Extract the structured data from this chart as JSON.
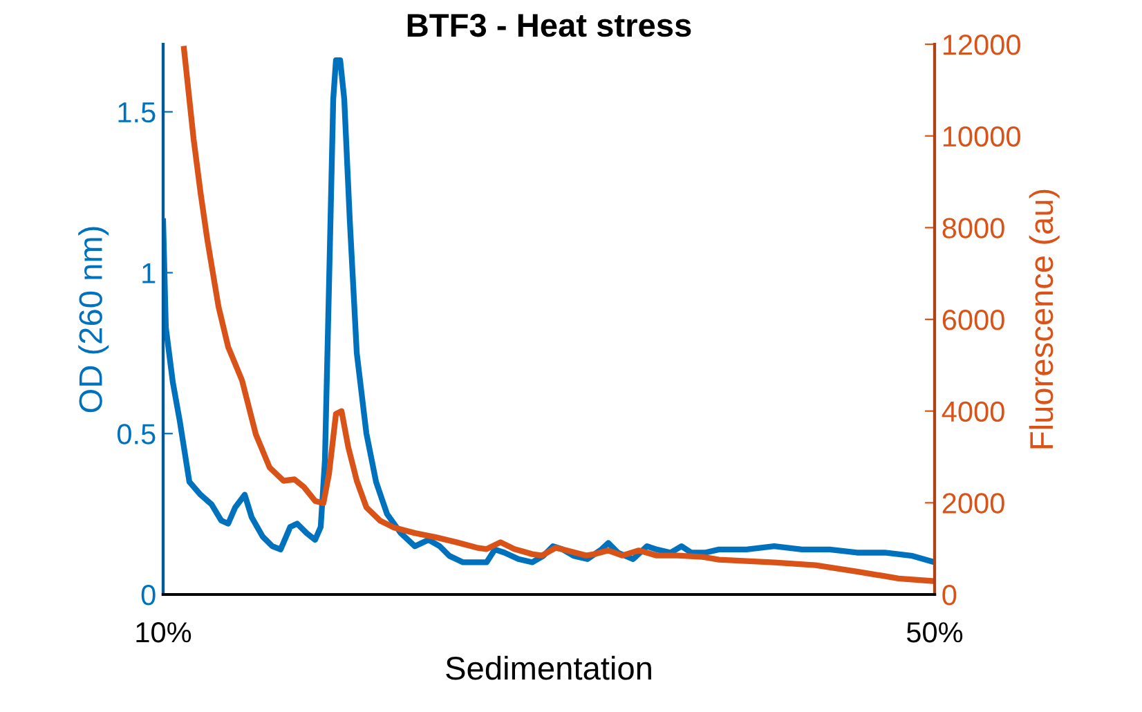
{
  "chart_data": {
    "type": "line",
    "title": "BTF3 - Heat stress",
    "xlabel": "Sedimentation",
    "ylabel": "OD (260 nm)",
    "y2label": "Fluorescence (au)",
    "xlim": [
      10,
      50
    ],
    "xticks": [
      {
        "value": 10,
        "label": "10%"
      },
      {
        "value": 50,
        "label": "50%"
      }
    ],
    "ylim": [
      0,
      1.71
    ],
    "yticks": [
      0,
      0.5,
      1,
      1.5
    ],
    "y2lim": [
      0,
      12000
    ],
    "y2ticks": [
      0,
      2000,
      4000,
      6000,
      8000,
      10000,
      12000
    ],
    "grid": false,
    "legend": false,
    "marker": "none",
    "line_style": "solid",
    "series": [
      {
        "color": "#0072bd",
        "x": [
          10.0,
          10.14,
          10.5,
          10.86,
          11.36,
          11.94,
          12.51,
          13.01,
          13.37,
          13.73,
          14.23,
          14.59,
          15.16,
          15.66,
          16.09,
          16.59,
          16.95,
          17.45,
          17.88,
          18.17,
          18.39,
          18.6,
          18.82,
          18.96,
          19.18,
          19.39,
          19.68,
          20.04,
          20.54,
          21.04,
          21.61,
          22.33,
          23.05,
          23.76,
          24.34,
          24.84,
          25.55,
          26.27,
          26.77,
          27.2,
          27.7,
          28.42,
          29.14,
          29.71,
          30.21,
          30.72,
          31.29,
          32.0,
          32.72,
          33.08,
          33.58,
          34.37,
          35.09,
          35.59,
          36.31,
          36.88,
          37.38,
          38.1,
          38.82,
          40.25,
          41.68,
          43.12,
          44.55,
          45.98,
          47.42,
          48.85,
          50.0
        ],
        "values": [
          1.16,
          0.83,
          0.66,
          0.54,
          0.35,
          0.31,
          0.28,
          0.23,
          0.22,
          0.27,
          0.31,
          0.24,
          0.18,
          0.15,
          0.14,
          0.21,
          0.22,
          0.19,
          0.17,
          0.21,
          0.42,
          0.96,
          1.54,
          1.66,
          1.66,
          1.54,
          1.16,
          0.75,
          0.5,
          0.35,
          0.25,
          0.19,
          0.15,
          0.17,
          0.15,
          0.12,
          0.1,
          0.1,
          0.1,
          0.14,
          0.13,
          0.11,
          0.1,
          0.12,
          0.15,
          0.14,
          0.12,
          0.11,
          0.14,
          0.16,
          0.13,
          0.11,
          0.15,
          0.14,
          0.13,
          0.15,
          0.13,
          0.13,
          0.14,
          0.14,
          0.15,
          0.14,
          0.14,
          0.13,
          0.13,
          0.12,
          0.1
        ]
      },
      {
        "color": "#d95319",
        "axis": "y2",
        "x": [
          11.08,
          11.58,
          11.94,
          12.29,
          12.87,
          13.37,
          14.09,
          14.8,
          15.52,
          16.24,
          16.81,
          17.31,
          17.88,
          18.31,
          18.6,
          18.96,
          19.25,
          19.6,
          20.04,
          20.54,
          21.25,
          21.97,
          23.05,
          24.12,
          25.2,
          26.27,
          26.77,
          27.49,
          28.21,
          29.14,
          29.64,
          30.36,
          30.93,
          31.93,
          32.36,
          33.08,
          33.8,
          34.66,
          35.59,
          36.67,
          37.96,
          38.82,
          40.25,
          41.68,
          43.83,
          45.98,
          48.13,
          50.0
        ],
        "values": [
          11900,
          9930,
          8760,
          7740,
          6280,
          5400,
          4670,
          3500,
          2770,
          2480,
          2510,
          2340,
          2040,
          1990,
          2630,
          3940,
          4000,
          3210,
          2480,
          1900,
          1610,
          1460,
          1340,
          1250,
          1140,
          1020,
          990,
          1140,
          990,
          880,
          850,
          1020,
          960,
          850,
          880,
          960,
          850,
          960,
          850,
          850,
          820,
          760,
          730,
          700,
          640,
          500,
          350,
          290
        ]
      }
    ]
  }
}
